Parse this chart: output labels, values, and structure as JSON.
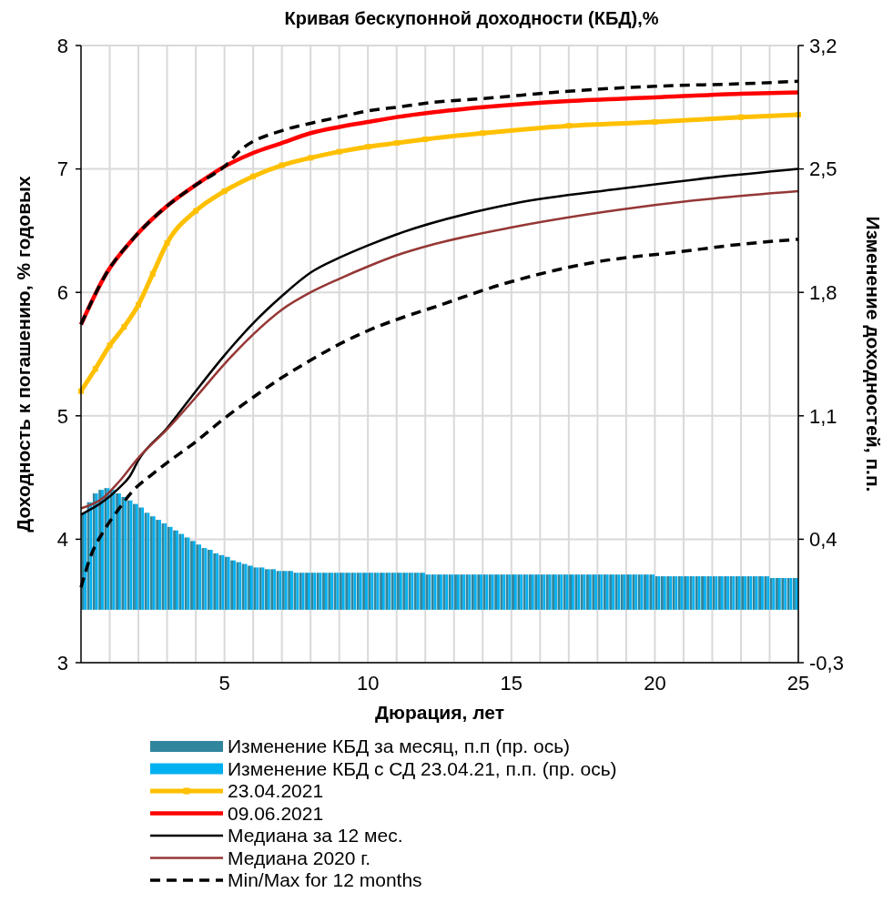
{
  "chart_data": {
    "type": "line",
    "title": "Кривая бескупонной доходности (КБД),%",
    "xlabel": "Дюрация, лет",
    "ylabel": "Доходность к погашению, % годовых",
    "y2label": "Изменение доходностей, п.п.",
    "xlim": [
      0,
      25
    ],
    "xticks": [
      {
        "value": 1,
        "label": null
      },
      {
        "value": 2,
        "label": null
      },
      {
        "value": 3,
        "label": null
      },
      {
        "value": 4,
        "label": null
      },
      5,
      {
        "value": 6,
        "label": null
      },
      {
        "value": 7,
        "label": null
      },
      {
        "value": 8,
        "label": null
      },
      {
        "value": 9,
        "label": null
      },
      10,
      {
        "value": 11,
        "label": null
      },
      {
        "value": 12,
        "label": null
      },
      {
        "value": 13,
        "label": null
      },
      {
        "value": 14,
        "label": null
      },
      15,
      {
        "value": 16,
        "label": null
      },
      {
        "value": 17,
        "label": null
      },
      {
        "value": 18,
        "label": null
      },
      {
        "value": 19,
        "label": null
      },
      20,
      {
        "value": 21,
        "label": null
      },
      {
        "value": 22,
        "label": null
      },
      {
        "value": 23,
        "label": null
      },
      {
        "value": 24,
        "label": null
      },
      25
    ],
    "ylim": [
      3,
      8
    ],
    "yticks": [
      3,
      4,
      5,
      6,
      7,
      8
    ],
    "y2lim": [
      -0.3,
      3.2
    ],
    "y2ticks": [
      {
        "value": -0.3,
        "label": "-0,3"
      },
      {
        "value": 0.4,
        "label": "0,4"
      },
      {
        "value": 1.1,
        "label": "1,1"
      },
      {
        "value": 1.8,
        "label": "1,8"
      },
      {
        "value": 2.5,
        "label": "2,5"
      },
      {
        "value": 3.2,
        "label": "3,2"
      }
    ],
    "grid": true,
    "legend": "bottom",
    "x": [
      0.1,
      0.3,
      0.5,
      0.7,
      0.9,
      1.1,
      1.3,
      1.5,
      1.7,
      1.9,
      2.1,
      2.3,
      2.5,
      2.7,
      2.9,
      3.1,
      3.3,
      3.5,
      3.7,
      3.9,
      4.1,
      4.3,
      4.5,
      4.7,
      4.9,
      5.1,
      5.3,
      5.5,
      5.7,
      5.9,
      6.1,
      6.3,
      6.5,
      6.7,
      6.9,
      7.1,
      7.3,
      7.5,
      7.7,
      7.9,
      8.1,
      8.3,
      8.5,
      8.7,
      8.9,
      9.1,
      9.3,
      9.5,
      9.7,
      9.9,
      10.1,
      10.3,
      10.5,
      10.7,
      10.9,
      11.1,
      11.3,
      11.5,
      11.7,
      11.9,
      12.1,
      12.3,
      12.5,
      12.7,
      12.9,
      13.1,
      13.3,
      13.5,
      13.7,
      13.9,
      14.1,
      14.3,
      14.5,
      14.7,
      14.9,
      15.1,
      15.3,
      15.5,
      15.7,
      15.9,
      16.1,
      16.3,
      16.5,
      16.7,
      16.9,
      17.1,
      17.3,
      17.5,
      17.7,
      17.9,
      18.1,
      18.3,
      18.5,
      18.7,
      18.9,
      19.1,
      19.3,
      19.5,
      19.7,
      19.9,
      20.1,
      20.3,
      20.5,
      20.7,
      20.9,
      21.1,
      21.3,
      21.5,
      21.7,
      21.9,
      22.1,
      22.3,
      22.5,
      22.7,
      22.9,
      23.1,
      23.3,
      23.5,
      23.7,
      23.9,
      24.1,
      24.3,
      24.5,
      24.7,
      24.9
    ],
    "series": [
      {
        "name": "Изменение КБД за месяц, п.п (пр. ось)",
        "type": "bar",
        "axis": "y2",
        "color": "#31859c",
        "values": [
          0.55,
          0.61,
          0.66,
          0.68,
          0.69,
          0.68,
          0.66,
          0.64,
          0.62,
          0.6,
          0.58,
          0.55,
          0.53,
          0.51,
          0.49,
          0.47,
          0.45,
          0.43,
          0.41,
          0.39,
          0.37,
          0.35,
          0.34,
          0.32,
          0.31,
          0.3,
          0.28,
          0.27,
          0.26,
          0.25,
          0.24,
          0.24,
          0.23,
          0.23,
          0.22,
          0.22,
          0.22,
          0.21,
          0.21,
          0.21,
          0.21,
          0.21,
          0.21,
          0.21,
          0.21,
          0.21,
          0.21,
          0.21,
          0.21,
          0.21,
          0.21,
          0.21,
          0.21,
          0.21,
          0.21,
          0.21,
          0.21,
          0.21,
          0.21,
          0.21,
          0.2,
          0.2,
          0.2,
          0.2,
          0.2,
          0.2,
          0.2,
          0.2,
          0.2,
          0.2,
          0.2,
          0.2,
          0.2,
          0.2,
          0.2,
          0.2,
          0.2,
          0.2,
          0.2,
          0.2,
          0.2,
          0.2,
          0.2,
          0.2,
          0.2,
          0.2,
          0.2,
          0.2,
          0.2,
          0.2,
          0.2,
          0.2,
          0.2,
          0.2,
          0.2,
          0.2,
          0.2,
          0.2,
          0.2,
          0.2,
          0.19,
          0.19,
          0.19,
          0.19,
          0.19,
          0.19,
          0.19,
          0.19,
          0.19,
          0.19,
          0.19,
          0.19,
          0.19,
          0.19,
          0.19,
          0.19,
          0.19,
          0.19,
          0.19,
          0.19,
          0.18,
          0.18,
          0.18,
          0.18,
          0.18
        ]
      },
      {
        "name": "Изменение КБД с СД 23.04.21, п.п. (пр. ось)",
        "type": "bar",
        "axis": "y2",
        "color": "#00b0f0",
        "values": [
          0.55,
          0.61,
          0.66,
          0.68,
          0.69,
          0.68,
          0.66,
          0.64,
          0.62,
          0.6,
          0.58,
          0.55,
          0.53,
          0.51,
          0.49,
          0.47,
          0.45,
          0.43,
          0.41,
          0.39,
          0.37,
          0.35,
          0.34,
          0.32,
          0.31,
          0.3,
          0.28,
          0.27,
          0.26,
          0.25,
          0.24,
          0.24,
          0.23,
          0.23,
          0.22,
          0.22,
          0.22,
          0.21,
          0.21,
          0.21,
          0.21,
          0.21,
          0.21,
          0.21,
          0.21,
          0.21,
          0.21,
          0.21,
          0.21,
          0.21,
          0.21,
          0.21,
          0.21,
          0.21,
          0.21,
          0.21,
          0.21,
          0.21,
          0.21,
          0.21,
          0.2,
          0.2,
          0.2,
          0.2,
          0.2,
          0.2,
          0.2,
          0.2,
          0.2,
          0.2,
          0.2,
          0.2,
          0.2,
          0.2,
          0.2,
          0.2,
          0.2,
          0.2,
          0.2,
          0.2,
          0.2,
          0.2,
          0.2,
          0.2,
          0.2,
          0.2,
          0.2,
          0.2,
          0.2,
          0.2,
          0.2,
          0.2,
          0.2,
          0.2,
          0.2,
          0.2,
          0.2,
          0.2,
          0.2,
          0.2,
          0.19,
          0.19,
          0.19,
          0.19,
          0.19,
          0.19,
          0.19,
          0.19,
          0.19,
          0.19,
          0.19,
          0.19,
          0.19,
          0.19,
          0.19,
          0.19,
          0.19,
          0.19,
          0.19,
          0.19,
          0.18,
          0.18,
          0.18,
          0.18,
          0.18
        ]
      },
      {
        "name": "23.04.2021",
        "color": "#ffc000",
        "marker": "square",
        "x": [
          0,
          0.5,
          1,
          1.5,
          2,
          2.5,
          3,
          4,
          5,
          6,
          7,
          8,
          9,
          10,
          11,
          12,
          14,
          17,
          20,
          23,
          25
        ],
        "values": [
          5.2,
          5.38,
          5.57,
          5.72,
          5.9,
          6.15,
          6.4,
          6.66,
          6.82,
          6.94,
          7.03,
          7.09,
          7.14,
          7.18,
          7.21,
          7.24,
          7.29,
          7.35,
          7.38,
          7.42,
          7.44
        ]
      },
      {
        "name": "09.06.2021",
        "color": "#ff0000",
        "x": [
          0,
          0.9,
          1.8,
          3,
          4,
          5,
          6,
          7,
          8,
          9,
          10,
          11,
          12.3,
          14,
          17,
          20,
          23,
          25
        ],
        "values": [
          5.74,
          6.16,
          6.43,
          6.7,
          6.87,
          7.02,
          7.13,
          7.21,
          7.29,
          7.34,
          7.38,
          7.42,
          7.46,
          7.5,
          7.55,
          7.58,
          7.61,
          7.62
        ]
      },
      {
        "name": "Медиана за 12 мес.",
        "color": "#000000",
        "x": [
          0,
          0.8,
          1.3,
          1.7,
          2,
          3,
          4,
          5,
          6,
          7,
          8,
          9,
          10,
          11,
          15.1,
          18.8,
          22,
          25
        ],
        "values": [
          4.2,
          4.31,
          4.41,
          4.51,
          4.64,
          4.9,
          5.2,
          5.49,
          5.75,
          5.97,
          6.16,
          6.28,
          6.38,
          6.47,
          6.72,
          6.84,
          6.93,
          7.0
        ]
      },
      {
        "name": "Медиана 2020 г.",
        "color": "#953735",
        "x": [
          0,
          0.8,
          1.3,
          2,
          3,
          4,
          5,
          6,
          7,
          8,
          9,
          10,
          11,
          12.3,
          15.1,
          18.8,
          22,
          25
        ],
        "values": [
          4.25,
          4.34,
          4.46,
          4.66,
          4.89,
          5.15,
          5.42,
          5.66,
          5.86,
          6.0,
          6.11,
          6.21,
          6.3,
          6.39,
          6.53,
          6.67,
          6.76,
          6.82
        ]
      },
      {
        "name": "Min/Max for 12 months",
        "color": "#000000",
        "line_style": "dashed",
        "x": [
          0,
          0.9,
          1.8,
          3,
          4,
          5,
          5.6,
          7,
          8,
          9,
          10,
          11,
          12.3,
          14,
          17,
          20,
          23,
          25
        ],
        "values": [
          5.74,
          6.16,
          6.43,
          6.7,
          6.87,
          7.02,
          7.16,
          7.31,
          7.37,
          7.42,
          7.47,
          7.5,
          7.54,
          7.57,
          7.63,
          7.67,
          7.69,
          7.71
        ]
      },
      {
        "color": "#000000",
        "line_style": "dashed",
        "x": [
          0,
          0.35,
          0.8,
          1.3,
          1.8,
          2.5,
          3,
          4,
          5,
          6,
          7,
          8,
          9,
          10,
          11,
          12.3,
          14.6,
          17.8,
          20.9,
          23,
          25
        ],
        "values": [
          3.61,
          3.87,
          4.07,
          4.24,
          4.39,
          4.53,
          4.62,
          4.79,
          4.98,
          5.15,
          5.31,
          5.45,
          5.58,
          5.69,
          5.78,
          5.88,
          6.06,
          6.24,
          6.33,
          6.39,
          6.43
        ]
      }
    ]
  }
}
